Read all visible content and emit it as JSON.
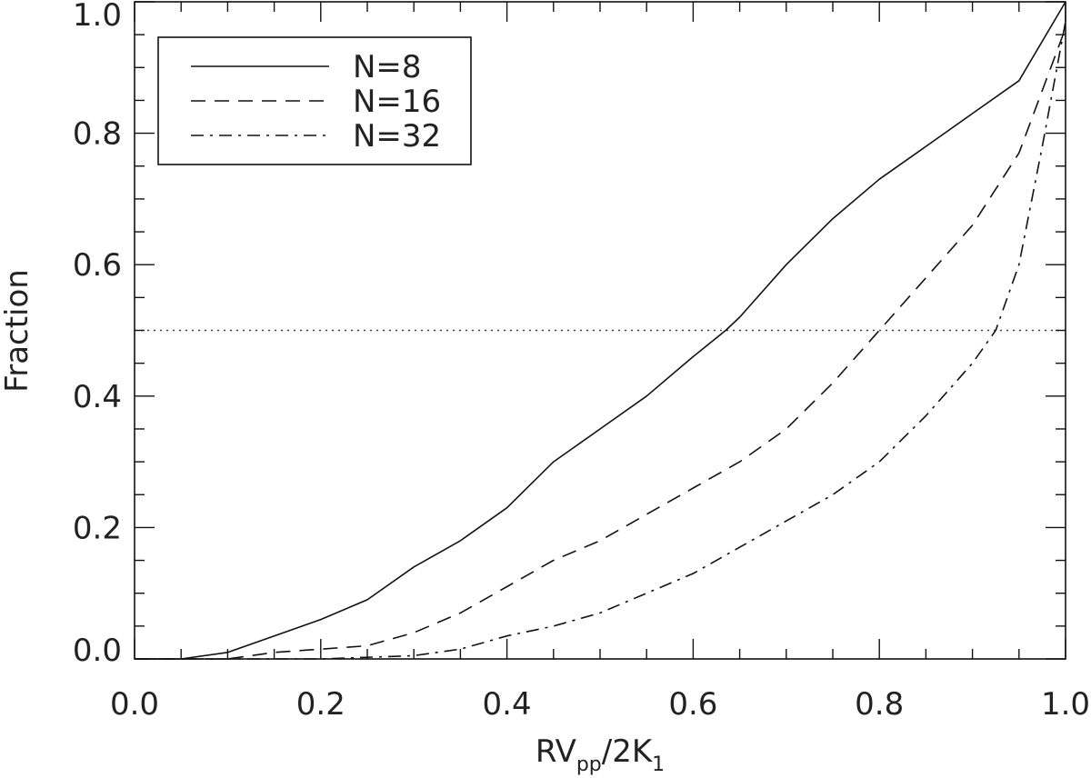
{
  "chart_data": {
    "type": "line",
    "title": "",
    "xlabel": {
      "base": "RV",
      "sub": "pp",
      "mid": "/2K",
      "sub2": "1"
    },
    "ylabel": "Fraction",
    "xlim": [
      0.0,
      1.0
    ],
    "ylim": [
      0.0,
      1.0
    ],
    "x_ticks": [
      0.0,
      0.2,
      0.4,
      0.6,
      0.8,
      1.0
    ],
    "y_ticks": [
      0.0,
      0.2,
      0.4,
      0.6,
      0.8,
      1.0
    ],
    "x_tick_labels": [
      "0.0",
      "0.2",
      "0.4",
      "0.6",
      "0.8",
      "1.0"
    ],
    "y_tick_labels": [
      "0.0",
      "0.2",
      "0.4",
      "0.6",
      "0.8",
      "1.0"
    ],
    "grid": false,
    "legend_position": "top-left",
    "reference_line": {
      "y": 0.5,
      "style": "dotted"
    },
    "series": [
      {
        "name": "N=8",
        "style": "solid",
        "x": [
          0.0,
          0.05,
          0.1,
          0.15,
          0.2,
          0.25,
          0.3,
          0.35,
          0.4,
          0.45,
          0.5,
          0.55,
          0.6,
          0.635,
          0.65,
          0.7,
          0.75,
          0.8,
          0.85,
          0.9,
          0.95,
          1.0
        ],
        "y": [
          0.0,
          0.0,
          0.01,
          0.035,
          0.06,
          0.09,
          0.14,
          0.18,
          0.23,
          0.3,
          0.35,
          0.4,
          0.46,
          0.5,
          0.52,
          0.6,
          0.67,
          0.73,
          0.78,
          0.83,
          0.88,
          1.0
        ]
      },
      {
        "name": "N=16",
        "style": "dashed",
        "x": [
          0.0,
          0.1,
          0.15,
          0.2,
          0.25,
          0.3,
          0.35,
          0.4,
          0.45,
          0.5,
          0.55,
          0.6,
          0.65,
          0.7,
          0.75,
          0.8,
          0.85,
          0.9,
          0.95,
          1.0
        ],
        "y": [
          0.0,
          0.0,
          0.01,
          0.015,
          0.02,
          0.04,
          0.07,
          0.11,
          0.15,
          0.18,
          0.22,
          0.26,
          0.3,
          0.35,
          0.42,
          0.5,
          0.58,
          0.66,
          0.77,
          0.96
        ]
      },
      {
        "name": "N=32",
        "style": "dashdot",
        "x": [
          0.0,
          0.2,
          0.3,
          0.35,
          0.4,
          0.45,
          0.5,
          0.55,
          0.6,
          0.65,
          0.7,
          0.75,
          0.8,
          0.85,
          0.9,
          0.925,
          0.95,
          0.975,
          1.0
        ],
        "y": [
          0.0,
          0.0,
          0.005,
          0.015,
          0.035,
          0.05,
          0.07,
          0.1,
          0.13,
          0.17,
          0.21,
          0.25,
          0.3,
          0.37,
          0.45,
          0.5,
          0.6,
          0.78,
          0.97
        ]
      }
    ]
  }
}
